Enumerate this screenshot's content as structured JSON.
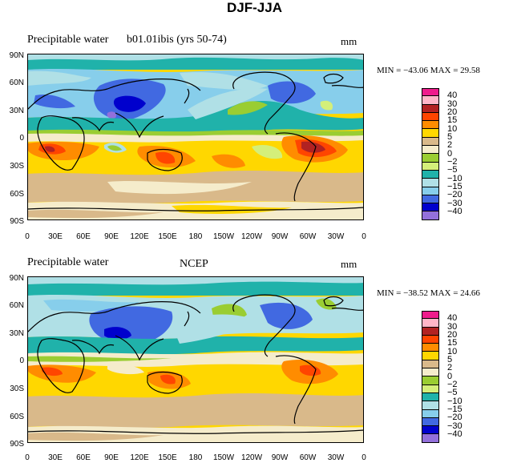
{
  "figure_title": "DJF-JJA",
  "panels": [
    {
      "title_left": "Precipitable water",
      "title_center": "b01.01ibis (yrs 50-74)",
      "units": "mm",
      "min_max": "MIN = −43.06 MAX =   29.58"
    },
    {
      "title_left": "Precipitable water",
      "title_center": "NCEP",
      "units": "mm",
      "min_max": "MIN = −38.52 MAX =   24.66"
    }
  ],
  "lat_ticks": [
    "90N",
    "60N",
    "30N",
    "0",
    "30S",
    "60S",
    "90S"
  ],
  "lon_ticks": [
    "0",
    "30E",
    "60E",
    "90E",
    "120E",
    "150E",
    "180",
    "150W",
    "120W",
    "90W",
    "60W",
    "30W",
    "0"
  ],
  "legend": {
    "levels": [
      "40",
      "30",
      "20",
      "15",
      "10",
      "5",
      "2",
      "0",
      "−2",
      "−5",
      "−10",
      "−15",
      "−20",
      "−30",
      "−40"
    ],
    "colors": [
      "#ee1c8c",
      "#ffb6c8",
      "#b22222",
      "#ff4500",
      "#ff8c00",
      "#ffd700",
      "#d9b98a",
      "#f5eccb",
      "#9acd32",
      "#d4ef7a",
      "#20b2aa",
      "#b0e0e6",
      "#87ceeb",
      "#4169e1",
      "#0000cd",
      "#9370db"
    ]
  }
}
